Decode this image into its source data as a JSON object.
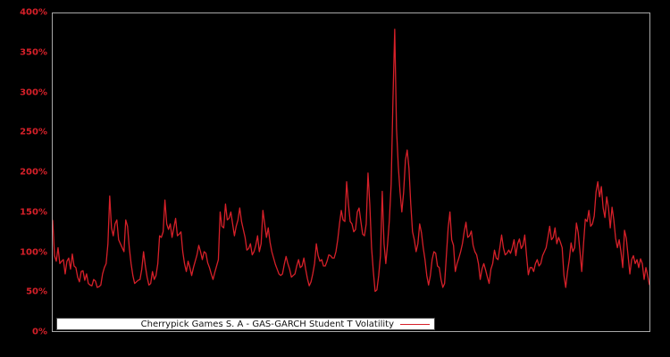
{
  "chart_data": {
    "type": "line",
    "title": "Cherrypick Games S. A - GAS-GARCH Student T Volatility",
    "xlabel": "",
    "ylabel": "",
    "ylim": [
      0,
      400
    ],
    "yticks": [
      "0%",
      "50%",
      "100%",
      "150%",
      "200%",
      "250%",
      "300%",
      "350%",
      "400%"
    ],
    "ytick_values": [
      0,
      50,
      100,
      150,
      200,
      250,
      300,
      350,
      400
    ],
    "xticks": [],
    "grid": false,
    "legend_position": "bottom-inside",
    "colors": {
      "background": "#000000",
      "line": "#d62029",
      "tick_label": "#d62029",
      "spine": "#a8a8a8",
      "legend_background": "#ffffff",
      "legend_text": "#111111"
    },
    "series": [
      {
        "name": "Cherrypick Games S. A - GAS-GARCH Student T Volatility",
        "unit": "%",
        "values": [
          140,
          95,
          88,
          105,
          85,
          88,
          90,
          72,
          88,
          92,
          78,
          97,
          82,
          80,
          68,
          62,
          75,
          76,
          64,
          72,
          60,
          58,
          57,
          65,
          63,
          55,
          56,
          58,
          72,
          80,
          85,
          110,
          170,
          130,
          120,
          135,
          140,
          115,
          110,
          105,
          100,
          140,
          132,
          105,
          85,
          70,
          60,
          62,
          64,
          65,
          78,
          100,
          82,
          68,
          58,
          60,
          75,
          65,
          70,
          85,
          120,
          118,
          125,
          165,
          135,
          128,
          135,
          118,
          130,
          142,
          120,
          122,
          125,
          100,
          85,
          75,
          88,
          80,
          70,
          80,
          88,
          96,
          108,
          100,
          90,
          100,
          98,
          86,
          80,
          72,
          65,
          74,
          82,
          90,
          150,
          132,
          130,
          160,
          140,
          142,
          150,
          135,
          120,
          132,
          140,
          155,
          138,
          128,
          118,
          102,
          104,
          110,
          96,
          100,
          108,
          120,
          100,
          110,
          152,
          135,
          118,
          130,
          112,
          100,
          92,
          84,
          78,
          72,
          70,
          72,
          84,
          94,
          85,
          78,
          68,
          70,
          72,
          82,
          90,
          80,
          82,
          92,
          78,
          66,
          57,
          62,
          72,
          85,
          110,
          95,
          88,
          90,
          82,
          82,
          88,
          96,
          95,
          92,
          92,
          100,
          115,
          135,
          152,
          140,
          138,
          188,
          160,
          138,
          135,
          125,
          128,
          150,
          155,
          138,
          122,
          120,
          135,
          199,
          160,
          105,
          75,
          50,
          52,
          70,
          95,
          176,
          110,
          85,
          110,
          140,
          185,
          290,
          380,
          255,
          208,
          175,
          150,
          175,
          215,
          228,
          205,
          160,
          125,
          115,
          100,
          110,
          135,
          124,
          105,
          90,
          70,
          58,
          70,
          90,
          100,
          98,
          82,
          80,
          65,
          55,
          60,
          95,
          130,
          150,
          115,
          108,
          75,
          85,
          92,
          100,
          110,
          125,
          137,
          118,
          120,
          126,
          108,
          100,
          96,
          85,
          65,
          78,
          85,
          77,
          68,
          60,
          78,
          85,
          102,
          92,
          90,
          105,
          121,
          105,
          96,
          98,
          102,
          98,
          105,
          115,
          95,
          110,
          116,
          104,
          108,
          121,
          95,
          71,
          80,
          80,
          75,
          85,
          90,
          82,
          85,
          95,
          100,
          105,
          118,
          132,
          115,
          118,
          130,
          110,
          118,
          112,
          105,
          70,
          55,
          75,
          90,
          111,
          100,
          105,
          136,
          124,
          100,
          75,
          110,
          141,
          138,
          152,
          132,
          135,
          145,
          175,
          188,
          169,
          182,
          155,
          143,
          169,
          155,
          130,
          156,
          140,
          117,
          105,
          115,
          100,
          80,
          127,
          117,
          95,
          72,
          90,
          95,
          85,
          90,
          80,
          91,
          85,
          65,
          80,
          70,
          58
        ]
      }
    ]
  },
  "legend": {
    "label": "Cherrypick Games S. A - GAS-GARCH Student T Volatility"
  }
}
